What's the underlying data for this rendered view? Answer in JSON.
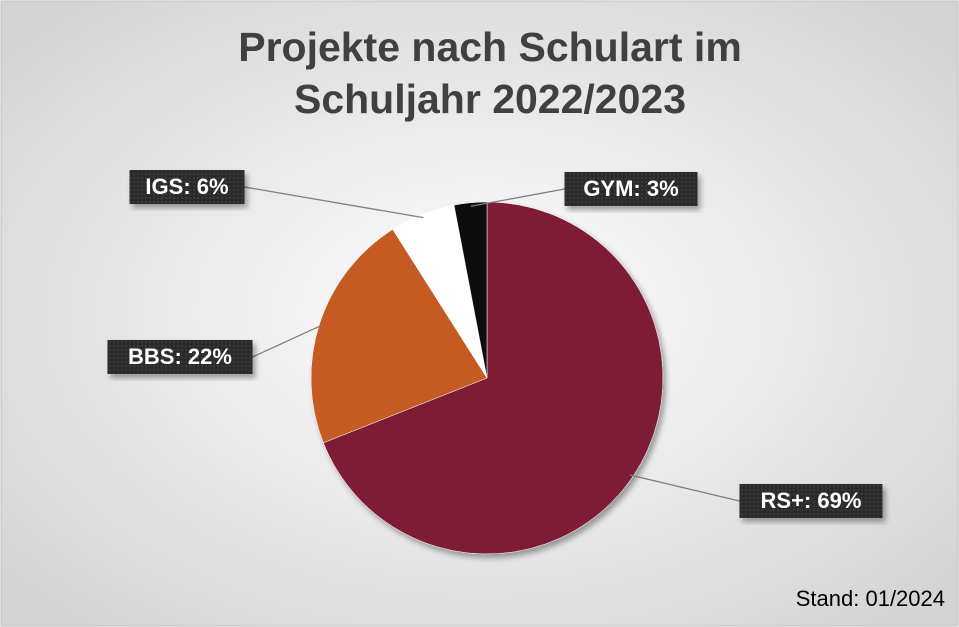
{
  "chart_data": {
    "type": "pie",
    "title": [
      "Projekte nach Schulart im",
      "Schuljahr 2022/2023"
    ],
    "values": [
      69,
      22,
      6,
      3
    ],
    "value_labels": [
      "RS+: 69%",
      "BBS: 22%",
      "IGS: 6%",
      "GYM: 3%"
    ],
    "colors": [
      "#7f1f35",
      "#c55a22",
      "#ffffff",
      "#111111"
    ],
    "note": "Stand: 01/2024"
  }
}
